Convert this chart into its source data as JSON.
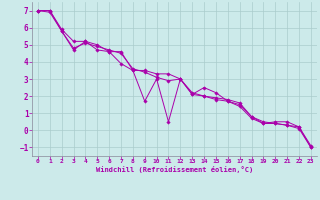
{
  "xlabel": "Windchill (Refroidissement éolien,°C)",
  "background_color": "#cceaea",
  "line_color": "#aa00aa",
  "grid_color": "#aacccc",
  "x_ticks": [
    0,
    1,
    2,
    3,
    4,
    5,
    6,
    7,
    8,
    9,
    10,
    11,
    12,
    13,
    14,
    15,
    16,
    17,
    18,
    19,
    20,
    21,
    22,
    23
  ],
  "y_ticks": [
    -1,
    0,
    1,
    2,
    3,
    4,
    5,
    6,
    7
  ],
  "ylim": [
    -1.5,
    7.5
  ],
  "xlim": [
    -0.5,
    23.5
  ],
  "series": [
    [
      7.0,
      7.0,
      5.8,
      4.7,
      5.2,
      4.7,
      4.6,
      3.9,
      3.5,
      1.7,
      3.0,
      0.5,
      3.0,
      2.1,
      2.5,
      2.2,
      1.7,
      1.4,
      0.7,
      0.4,
      0.5,
      0.5,
      0.2,
      -1.0
    ],
    [
      7.0,
      7.0,
      5.9,
      5.2,
      5.2,
      5.0,
      4.6,
      4.6,
      3.5,
      3.5,
      3.3,
      3.3,
      3.0,
      2.2,
      2.0,
      1.8,
      1.7,
      1.5,
      0.8,
      0.4,
      0.4,
      0.3,
      0.2,
      -0.9
    ],
    [
      7.0,
      6.9,
      5.8,
      4.8,
      5.1,
      4.9,
      4.7,
      4.5,
      3.6,
      3.4,
      3.1,
      2.9,
      3.0,
      2.1,
      2.0,
      1.9,
      1.8,
      1.6,
      0.8,
      0.5,
      0.4,
      0.3,
      0.1,
      -1.0
    ]
  ]
}
